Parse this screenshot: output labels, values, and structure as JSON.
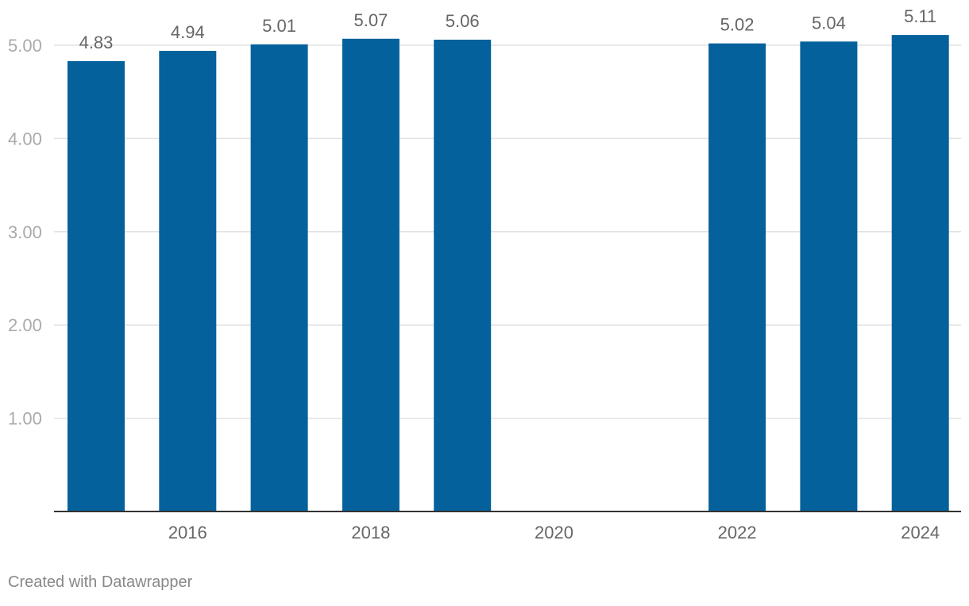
{
  "chart_data": {
    "type": "bar",
    "categories": [
      "2015",
      "2016",
      "2017",
      "2018",
      "2019",
      "2020",
      "2021",
      "2022",
      "2023",
      "2024"
    ],
    "values": [
      4.83,
      4.94,
      5.01,
      5.07,
      5.06,
      null,
      null,
      5.02,
      5.04,
      5.11
    ],
    "data_labels": [
      "4.83",
      "4.94",
      "5.01",
      "5.07",
      "5.06",
      "",
      "",
      "5.02",
      "5.04",
      "5.11"
    ],
    "x_tick_labels": [
      "2016",
      "2018",
      "2020",
      "2022",
      "2024"
    ],
    "y_ticks": [
      1,
      2,
      3,
      4,
      5
    ],
    "y_tick_labels": [
      "1.00",
      "2.00",
      "3.00",
      "4.00",
      "5.00"
    ],
    "ylim": [
      0,
      5
    ],
    "grid": true,
    "title": "",
    "xlabel": "",
    "ylabel": "",
    "colors": {
      "bar": "#05619c",
      "grid": "#e2e2e2",
      "axis": "#333333",
      "tick_text": "#aaaaaa",
      "x_tick_text": "#666666",
      "label_text": "#666666"
    }
  },
  "footer": {
    "credit": "Created with Datawrapper"
  }
}
